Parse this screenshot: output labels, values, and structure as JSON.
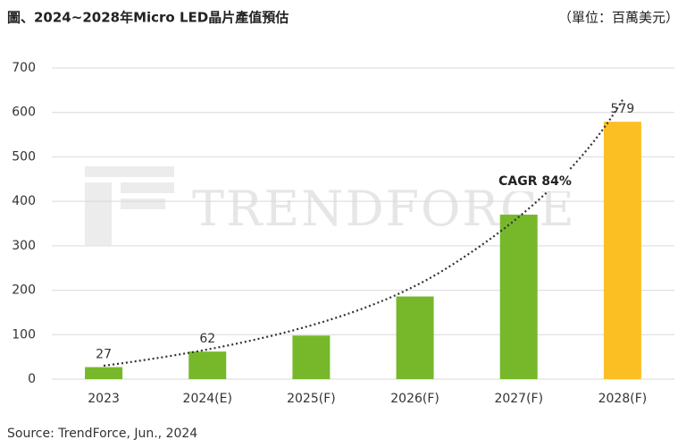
{
  "chart_data": {
    "type": "bar",
    "title": "圖、2024~2028年Micro LED晶片產值預估",
    "unit_label": "（單位：百萬美元）",
    "source": "Source: TrendForce, Jun., 2024",
    "watermark": "TRENDFORCE",
    "annotation": "CAGR 84%",
    "categories": [
      "2023",
      "2024(E)",
      "2025(F)",
      "2026(F)",
      "2027(F)",
      "2028(F)"
    ],
    "values": [
      27,
      62,
      98,
      186,
      370,
      579
    ],
    "value_labels": [
      "27",
      "62",
      null,
      null,
      null,
      "579"
    ],
    "colors": [
      "#76b82a",
      "#76b82a",
      "#76b82a",
      "#76b82a",
      "#76b82a",
      "#fbbf24"
    ],
    "ylim": [
      0,
      700
    ],
    "yticks": [
      0,
      100,
      200,
      300,
      400,
      500,
      600,
      700
    ],
    "grid": true
  }
}
